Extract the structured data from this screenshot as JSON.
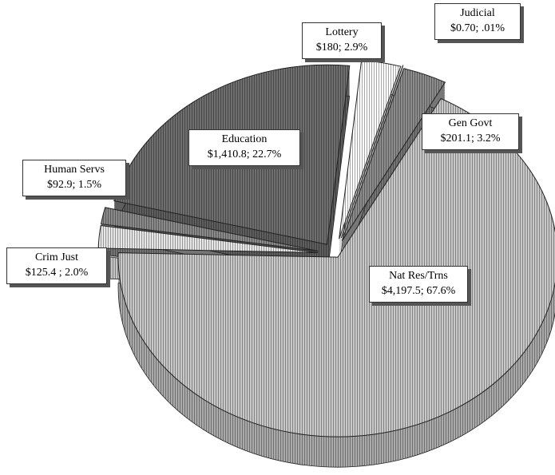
{
  "chart_data": {
    "type": "pie",
    "categories": [
      "Nat Res/Trns",
      "Crim Just",
      "Human Servs",
      "Education",
      "Lottery",
      "Judicial",
      "Gen Govt"
    ],
    "values": [
      4197.5,
      125.4,
      92.9,
      1410.8,
      180,
      0.7,
      201.1
    ],
    "value_labels": [
      "$4,197.5; 67.6%",
      "$125.4 ; 2.0%",
      "$92.9; 1.5%",
      "$1,410.8; 22.7%",
      "$180; 2.9%",
      "$0.70; .01%",
      "$201.1; 3.2%"
    ],
    "colors": [
      "#c8c8c8",
      "#e6e6e6",
      "#8a8a8a",
      "#6e6e6e",
      "#ffffff",
      "#5a5a5a",
      "#8c8c8c"
    ]
  }
}
